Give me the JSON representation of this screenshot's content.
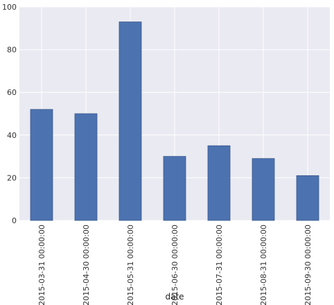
{
  "chart_data": {
    "type": "bar",
    "categories": [
      "2015-03-31 00:00:00",
      "2015-04-30 00:00:00",
      "2015-05-31 00:00:00",
      "2015-06-30 00:00:00",
      "2015-07-31 00:00:00",
      "2015-08-31 00:00:00",
      "2015-09-30 00:00:00"
    ],
    "values": [
      52,
      50,
      93,
      30,
      35,
      29,
      21
    ],
    "title": "",
    "xlabel": "date",
    "ylabel": "",
    "ylim": [
      0,
      100
    ],
    "yticks": [
      "0",
      "20",
      "40",
      "60",
      "80",
      "100"
    ],
    "grid": true,
    "legend": "none",
    "colors": {
      "bar": "#4c72b0",
      "bar_edge": "#3b5a8c",
      "plot_background": "#eaeaf2",
      "grid": "#ffffff"
    }
  }
}
